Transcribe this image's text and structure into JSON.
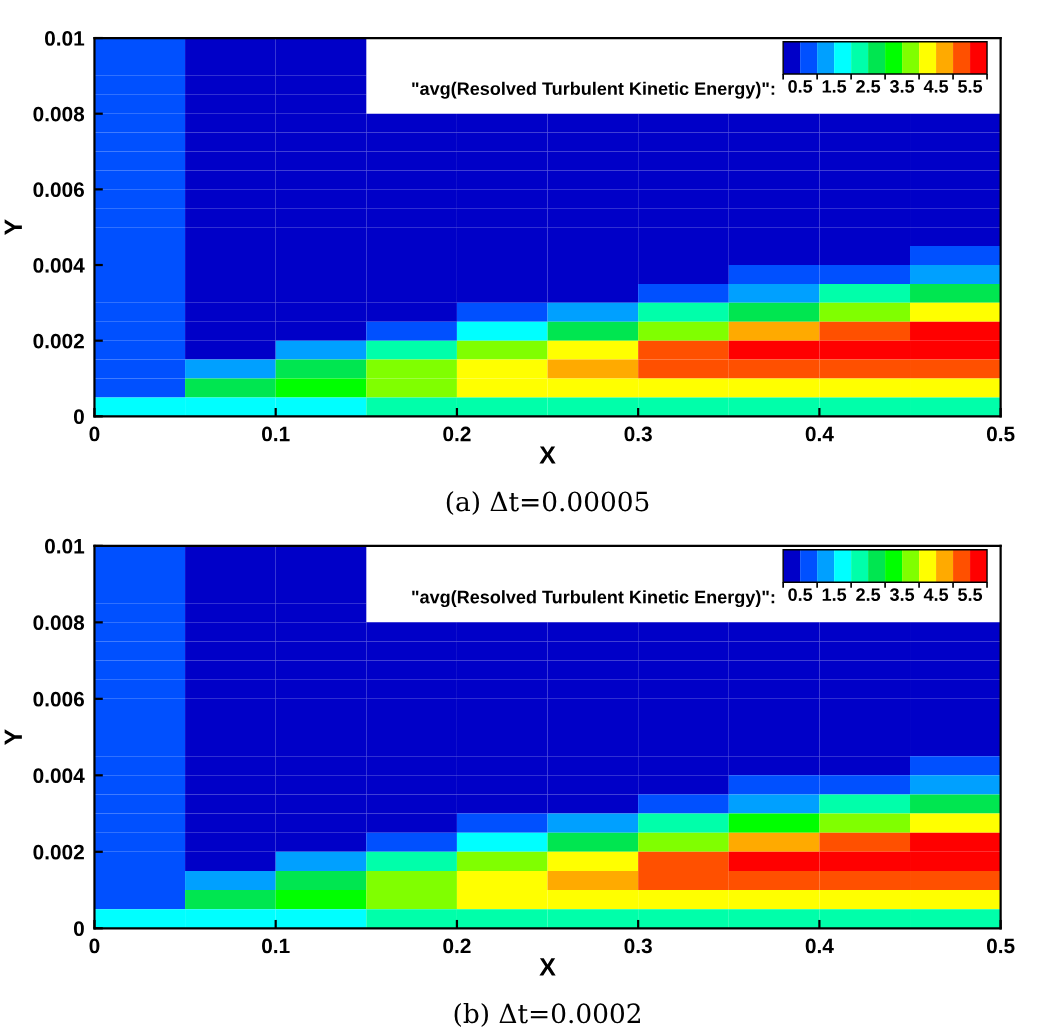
{
  "chart_data": [
    {
      "type": "heatmap",
      "title": "(a) Δt=0.00005",
      "xlabel": "X",
      "ylabel": "Y",
      "clabel": "\"avg(Resolved Turbulent Kinetic Energy)\":",
      "xlim": [
        0,
        0.5
      ],
      "ylim": [
        0,
        0.01
      ],
      "xticks": [
        0,
        0.1,
        0.2,
        0.3,
        0.4,
        0.5
      ],
      "yticks": [
        0,
        0.002,
        0.004,
        0.006,
        0.008,
        0.01
      ],
      "clim": [
        0,
        6
      ],
      "cticks": [
        0.5,
        1.5,
        2.5,
        3.5,
        4.5,
        5.5
      ],
      "cells": [
        [
          0.8,
          0.3,
          0.3,
          null,
          null,
          null,
          null,
          null,
          null,
          null
        ],
        [
          0.8,
          0.3,
          0.3,
          null,
          null,
          null,
          null,
          null,
          null,
          null
        ],
        [
          0.8,
          0.3,
          0.3,
          null,
          null,
          null,
          null,
          null,
          null,
          null
        ],
        [
          0.8,
          0.3,
          0.3,
          null,
          null,
          null,
          null,
          null,
          null,
          null
        ],
        [
          0.8,
          0.3,
          0.3,
          0.3,
          0.3,
          0.3,
          0.3,
          0.3,
          0.3,
          0.3
        ],
        [
          0.8,
          0.3,
          0.3,
          0.3,
          0.3,
          0.3,
          0.3,
          0.3,
          0.3,
          0.3
        ],
        [
          0.8,
          0.3,
          0.3,
          0.3,
          0.3,
          0.3,
          0.3,
          0.3,
          0.3,
          0.3
        ],
        [
          0.8,
          0.3,
          0.3,
          0.3,
          0.3,
          0.3,
          0.3,
          0.3,
          0.3,
          0.3
        ],
        [
          0.8,
          0.3,
          0.3,
          0.3,
          0.3,
          0.3,
          0.3,
          0.3,
          0.3,
          0.3
        ],
        [
          0.8,
          0.3,
          0.3,
          0.3,
          0.3,
          0.3,
          0.3,
          0.3,
          0.3,
          0.3
        ],
        [
          0.8,
          0.3,
          0.3,
          0.3,
          0.3,
          0.3,
          0.3,
          0.3,
          0.3,
          0.3
        ],
        [
          0.8,
          0.3,
          0.3,
          0.3,
          0.3,
          0.3,
          0.3,
          0.3,
          0.3,
          0.6
        ],
        [
          0.8,
          0.3,
          0.3,
          0.3,
          0.3,
          0.3,
          0.3,
          0.5,
          0.8,
          1.2
        ],
        [
          0.8,
          0.3,
          0.3,
          0.3,
          0.3,
          0.4,
          0.8,
          1.3,
          2.0,
          2.5
        ],
        [
          0.8,
          0.3,
          0.3,
          0.3,
          0.6,
          1.2,
          2.0,
          2.8,
          3.5,
          4.0
        ],
        [
          0.8,
          0.3,
          0.3,
          0.8,
          1.8,
          2.8,
          3.6,
          4.5,
          5.0,
          5.5
        ],
        [
          0.8,
          0.3,
          1.0,
          2.2,
          3.5,
          4.4,
          5.0,
          5.6,
          5.7,
          5.8
        ],
        [
          0.8,
          1.0,
          2.8,
          3.8,
          4.4,
          4.8,
          5.0,
          5.2,
          5.2,
          5.2
        ],
        [
          0.8,
          2.5,
          3.2,
          3.8,
          4.0,
          4.0,
          4.0,
          4.0,
          4.0,
          4.0
        ],
        [
          1.5,
          1.5,
          1.8,
          2.0,
          2.0,
          2.0,
          2.0,
          2.0,
          2.0,
          2.0
        ]
      ]
    },
    {
      "type": "heatmap",
      "title": "(b) Δt=0.0002",
      "xlabel": "X",
      "ylabel": "Y",
      "clabel": "\"avg(Resolved Turbulent Kinetic Energy)\":",
      "xlim": [
        0,
        0.5
      ],
      "ylim": [
        0,
        0.01
      ],
      "xticks": [
        0,
        0.1,
        0.2,
        0.3,
        0.4,
        0.5
      ],
      "yticks": [
        0,
        0.002,
        0.004,
        0.006,
        0.008,
        0.01
      ],
      "clim": [
        0,
        6
      ],
      "cticks": [
        0.5,
        1.5,
        2.5,
        3.5,
        4.5,
        5.5
      ],
      "cells": [
        [
          0.8,
          0.3,
          0.3,
          null,
          null,
          null,
          null,
          null,
          null,
          null
        ],
        [
          0.8,
          0.3,
          0.3,
          null,
          null,
          null,
          null,
          null,
          null,
          null
        ],
        [
          0.8,
          0.3,
          0.3,
          null,
          null,
          null,
          null,
          null,
          null,
          null
        ],
        [
          0.8,
          0.3,
          0.3,
          null,
          null,
          null,
          null,
          null,
          null,
          null
        ],
        [
          0.8,
          0.3,
          0.3,
          0.3,
          0.3,
          0.3,
          0.3,
          0.3,
          0.3,
          0.3
        ],
        [
          0.8,
          0.3,
          0.3,
          0.3,
          0.3,
          0.3,
          0.3,
          0.3,
          0.3,
          0.3
        ],
        [
          0.8,
          0.3,
          0.3,
          0.3,
          0.3,
          0.3,
          0.3,
          0.3,
          0.3,
          0.3
        ],
        [
          0.8,
          0.3,
          0.3,
          0.3,
          0.3,
          0.3,
          0.3,
          0.3,
          0.3,
          0.3
        ],
        [
          0.8,
          0.3,
          0.3,
          0.3,
          0.3,
          0.3,
          0.3,
          0.3,
          0.3,
          0.3
        ],
        [
          0.8,
          0.3,
          0.3,
          0.3,
          0.3,
          0.3,
          0.3,
          0.3,
          0.3,
          0.3
        ],
        [
          0.8,
          0.3,
          0.3,
          0.3,
          0.3,
          0.3,
          0.3,
          0.3,
          0.3,
          0.3
        ],
        [
          0.8,
          0.3,
          0.3,
          0.3,
          0.3,
          0.3,
          0.3,
          0.3,
          0.3,
          0.6
        ],
        [
          0.8,
          0.3,
          0.3,
          0.3,
          0.3,
          0.3,
          0.3,
          0.5,
          0.9,
          1.3
        ],
        [
          0.8,
          0.3,
          0.3,
          0.3,
          0.3,
          0.4,
          0.9,
          1.4,
          2.1,
          2.6
        ],
        [
          0.8,
          0.3,
          0.3,
          0.3,
          0.6,
          1.2,
          2.1,
          3.0,
          3.7,
          4.2
        ],
        [
          0.8,
          0.3,
          0.3,
          0.8,
          1.8,
          2.8,
          3.8,
          4.7,
          5.2,
          5.7
        ],
        [
          0.8,
          0.3,
          1.0,
          2.2,
          3.5,
          4.4,
          5.3,
          5.7,
          5.8,
          5.9
        ],
        [
          0.8,
          1.0,
          2.8,
          3.8,
          4.4,
          4.8,
          5.2,
          5.3,
          5.3,
          5.3
        ],
        [
          0.8,
          2.5,
          3.2,
          3.8,
          4.0,
          4.0,
          4.0,
          4.0,
          4.0,
          4.0
        ],
        [
          1.5,
          1.5,
          1.8,
          2.0,
          2.0,
          2.0,
          2.0,
          2.0,
          2.0,
          2.0
        ]
      ]
    }
  ]
}
